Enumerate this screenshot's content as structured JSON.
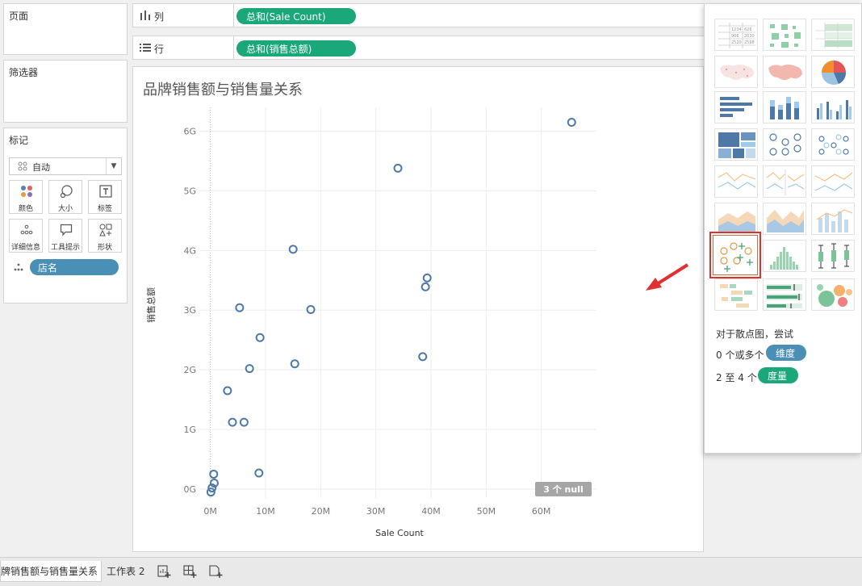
{
  "sidebar": {
    "pages_title": "页面",
    "filters_title": "筛选器",
    "marks_title": "标记",
    "mark_type": "自动",
    "mark_buttons": [
      "颜色",
      "大小",
      "标签",
      "详细信息",
      "工具提示",
      "形状"
    ],
    "detail_pill": "店名"
  },
  "shelves": {
    "columns_label": "列",
    "columns_pill": "总和(Sale Count)",
    "rows_label": "行",
    "rows_pill": "总和(销售总额)"
  },
  "view": {
    "title": "品牌销售额与销售量关系",
    "null_badge": "3 个 null"
  },
  "chart_data": {
    "type": "scatter",
    "title": "品牌销售额与销售量关系",
    "xlabel": "Sale Count",
    "ylabel": "销售总额",
    "xlim": [
      -2000000,
      70000000
    ],
    "ylim": [
      -150000000,
      6400000000
    ],
    "x_ticks": [
      "0M",
      "10M",
      "20M",
      "30M",
      "40M",
      "50M",
      "60M"
    ],
    "x_tick_values": [
      0,
      10000000,
      20000000,
      30000000,
      40000000,
      50000000,
      60000000
    ],
    "y_ticks": [
      "0G",
      "1G",
      "2G",
      "3G",
      "4G",
      "5G",
      "6G"
    ],
    "y_tick_values": [
      0,
      1000000000,
      2000000000,
      3000000000,
      4000000000,
      5000000000,
      6000000000
    ],
    "grid": true,
    "marker_color": "#4e79a7",
    "points": [
      {
        "x": 65500000,
        "y": 6150000000
      },
      {
        "x": 34000000,
        "y": 5380000000
      },
      {
        "x": 15000000,
        "y": 4020000000
      },
      {
        "x": 39300000,
        "y": 3540000000
      },
      {
        "x": 39000000,
        "y": 3390000000
      },
      {
        "x": 18200000,
        "y": 3010000000
      },
      {
        "x": 5300000,
        "y": 3040000000
      },
      {
        "x": 9000000,
        "y": 2540000000
      },
      {
        "x": 7100000,
        "y": 2020000000
      },
      {
        "x": 15300000,
        "y": 2100000000
      },
      {
        "x": 38500000,
        "y": 2220000000
      },
      {
        "x": 3100000,
        "y": 1650000000
      },
      {
        "x": 4000000,
        "y": 1120000000
      },
      {
        "x": 6100000,
        "y": 1120000000
      },
      {
        "x": 8800000,
        "y": 270000000
      },
      {
        "x": 600000,
        "y": 250000000
      },
      {
        "x": 700000,
        "y": 100000000
      },
      {
        "x": 300000,
        "y": 20000000
      },
      {
        "x": 100000,
        "y": -50000000
      }
    ]
  },
  "show_me": {
    "hint": "对于散点图，尝试",
    "req1_prefix": "0 个或多个",
    "req1_pill": "维度",
    "req2_prefix": "2 至 4 个",
    "req2_pill": "度量"
  },
  "tabs": {
    "sheet1": "牌销售额与销售量关系",
    "sheet2": "工作表 2"
  },
  "colors": {
    "dimension": "#4a8fb5",
    "measure": "#1aa77a",
    "highlight": "#e03030"
  }
}
